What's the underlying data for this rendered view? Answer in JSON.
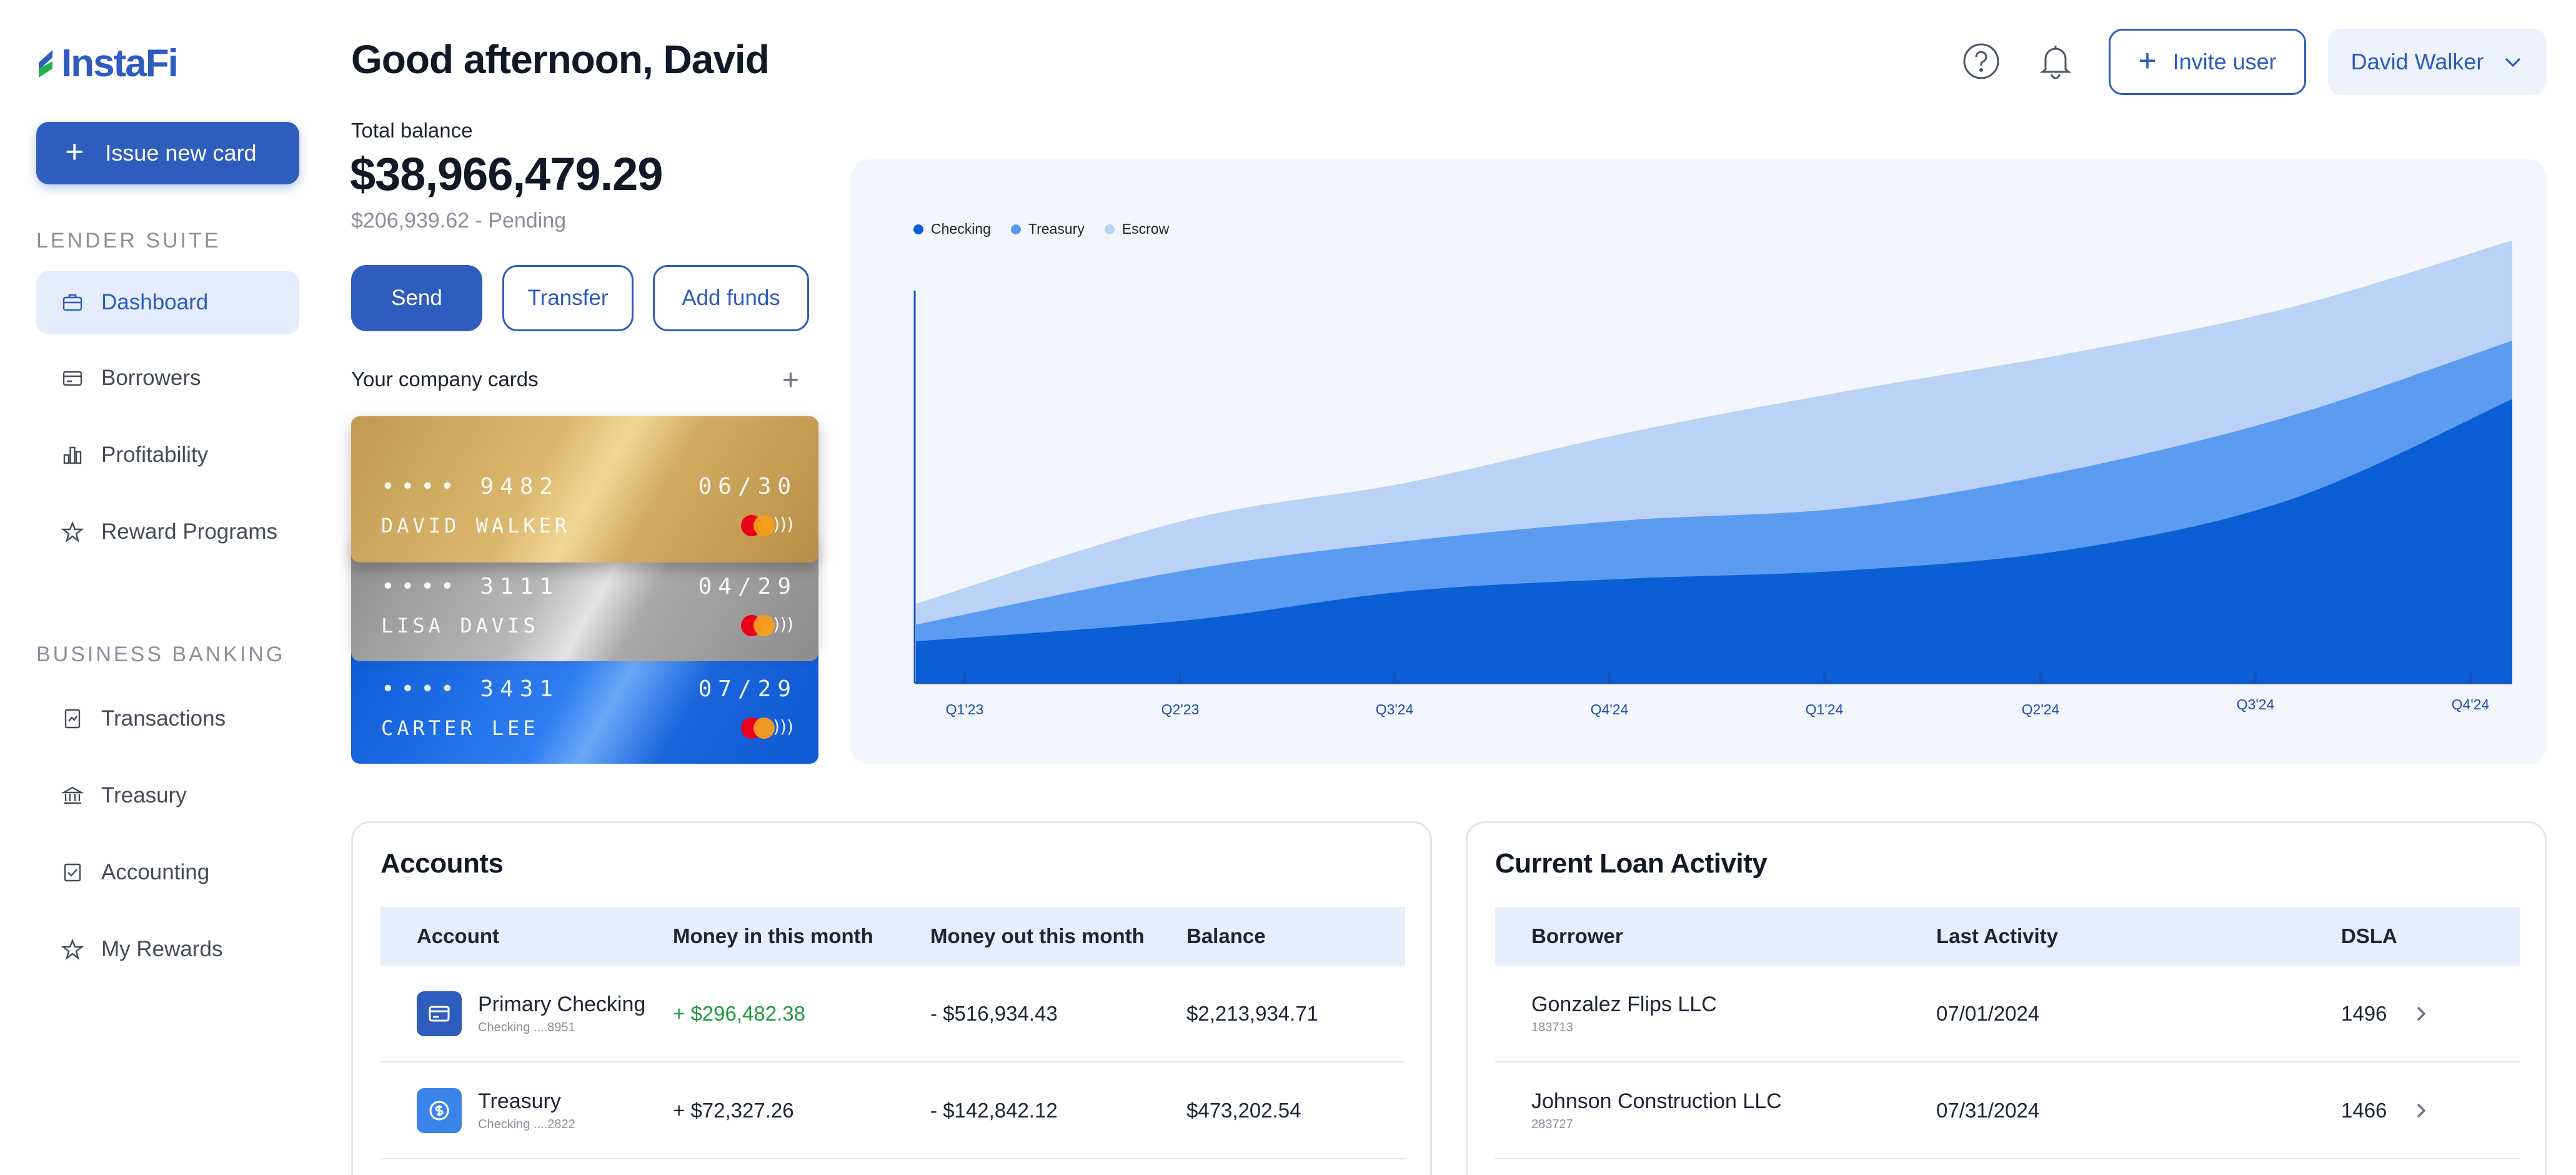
{
  "app": {
    "brand": "InstaFi"
  },
  "sidebar": {
    "issue_button": "Issue new card",
    "sections": [
      {
        "label": "LENDER SUITE",
        "items": [
          {
            "label": "Dashboard",
            "icon": "briefcase-icon",
            "active": true
          },
          {
            "label": "Borrowers",
            "icon": "card-icon",
            "active": false
          },
          {
            "label": "Profitability",
            "icon": "bar-chart-icon",
            "active": false
          },
          {
            "label": "Reward Programs",
            "icon": "star-icon",
            "active": false
          }
        ]
      },
      {
        "label": "BUSINESS BANKING",
        "items": [
          {
            "label": "Transactions",
            "icon": "receipt-icon",
            "active": false
          },
          {
            "label": "Treasury",
            "icon": "bank-icon",
            "active": false
          },
          {
            "label": "Accounting",
            "icon": "checklist-icon",
            "active": false
          },
          {
            "label": "My Rewards",
            "icon": "star-icon",
            "active": false
          }
        ]
      }
    ]
  },
  "header": {
    "greeting": "Good afternoon, David",
    "invite_label": "Invite user",
    "user_name": "David Walker"
  },
  "balance": {
    "label": "Total balance",
    "amount": "$38,966,479.29",
    "pending": "$206,939.62 - Pending",
    "actions": [
      "Send",
      "Transfer",
      "Add funds"
    ]
  },
  "cards": {
    "label": "Your company cards",
    "items": [
      {
        "number": "•••• 9482",
        "expiry": "06/30",
        "holder": "DAVID WALKER",
        "style": "gold"
      },
      {
        "number": "•••• 3111",
        "expiry": "04/29",
        "holder": "LISA DAVIS",
        "style": "silver"
      },
      {
        "number": "•••• 3431",
        "expiry": "07/29",
        "holder": "CARTER LEE",
        "style": "blue"
      }
    ]
  },
  "chart_data": {
    "type": "area",
    "stacked": true,
    "categories": [
      "Q1'23",
      "Q2'23",
      "Q3'24",
      "Q4'24",
      "Q1'24",
      "Q2'24",
      "Q3'24",
      "Q4'24"
    ],
    "series": [
      {
        "name": "Checking",
        "color": "#0a5fd4",
        "values": [
          10,
          15,
          22,
          25,
          27,
          32,
          44,
          68
        ]
      },
      {
        "name": "Treasury",
        "color": "#5b9bf0",
        "values": [
          4,
          12,
          12,
          14,
          15,
          19,
          20,
          14
        ]
      },
      {
        "name": "Escrow",
        "color": "#b9d2f6",
        "values": [
          5,
          12,
          14,
          21,
          28,
          28,
          26,
          24
        ]
      }
    ],
    "ylim": [
      0,
      120
    ],
    "legend": "top-left",
    "grid": false
  },
  "accounts": {
    "title": "Accounts",
    "columns": [
      "Account",
      "Money in this month",
      "Money out this month",
      "Balance"
    ],
    "rows": [
      {
        "name": "Primary Checking",
        "sub": "Checking ....8951",
        "in": "+ $296,482.38",
        "out": "- $516,934.43",
        "balance": "$2,213,934.71",
        "icon": "card-icon",
        "icon_color": "#2f5dbd",
        "in_positive": true
      },
      {
        "name": "Treasury",
        "sub": "Checking ....2822",
        "in": "+ $72,327.26",
        "out": "- $142,842.12",
        "balance": "$473,202.54",
        "icon": "dollar-icon",
        "icon_color": "#3b84ea",
        "in_positive": false
      }
    ]
  },
  "loans": {
    "title": "Current Loan Activity",
    "columns": [
      "Borrower",
      "Last Activity",
      "DSLA"
    ],
    "rows": [
      {
        "name": "Gonzalez Flips LLC",
        "sub": "183713",
        "date": "07/01/2024",
        "dsla": "1496"
      },
      {
        "name": "Johnson Construction LLC",
        "sub": "283727",
        "date": "07/31/2024",
        "dsla": "1466"
      }
    ]
  }
}
